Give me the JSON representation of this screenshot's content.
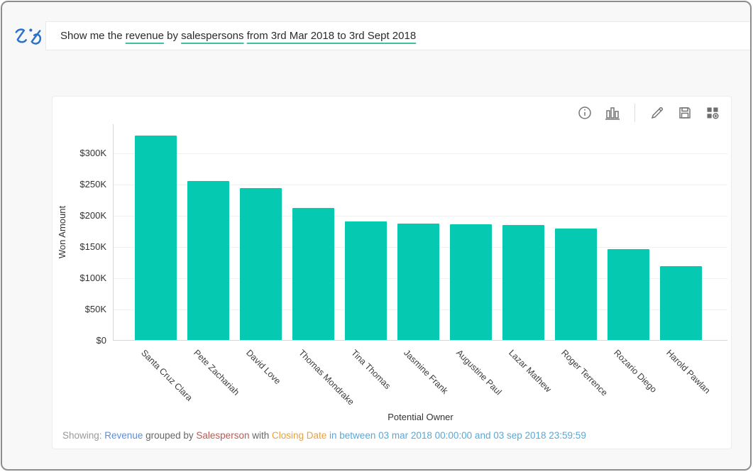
{
  "app": {
    "name": "Zia Analytics",
    "logo_icon": "zia-logo",
    "logo_color": "#2a72c8"
  },
  "query_bar": {
    "underline_color": "#41bfa7",
    "segments": [
      {
        "text": "Show me the ",
        "underlined": false
      },
      {
        "text": "revenue",
        "underlined": true
      },
      {
        "text": " by ",
        "underlined": false
      },
      {
        "text": "salespersons",
        "underlined": true
      },
      {
        "text": " ",
        "underlined": false
      },
      {
        "text": "from 3rd Mar 2018 to 3rd Sept 2018",
        "underlined": true
      }
    ]
  },
  "toolbar": {
    "icons": [
      "info-icon",
      "chart-type-icon",
      "edit-icon",
      "save-icon",
      "add-to-dashboard-icon"
    ]
  },
  "chart_data": {
    "type": "bar",
    "title": "",
    "xlabel": "Potential Owner",
    "ylabel": "Won Amount",
    "categories": [
      "Santa Cruz Clara",
      "Pete Zachariah",
      "David Love",
      "Thomas Mondrake",
      "Tina Thomas",
      "Jasmine Frank",
      "Augustine Paul",
      "Lazar Mathew",
      "Roger Terrence",
      "Rozario Diego",
      "Harold Pawlan"
    ],
    "values": [
      327000,
      255000,
      243000,
      211000,
      190000,
      186000,
      185000,
      184000,
      179000,
      146000,
      118000
    ],
    "values_unit": "USD",
    "yticks": [
      "$0",
      "$50K",
      "$100K",
      "$150K",
      "$200K",
      "$250K",
      "$300K"
    ],
    "ytick_step": 50000,
    "ylim": [
      0,
      346000
    ],
    "grid": true,
    "legend": "none",
    "bar_color": "#05c9b1"
  },
  "footer": {
    "segments": [
      {
        "text": "Showing: ",
        "color": "#9a9a9a"
      },
      {
        "text": "Revenue",
        "color": "#5b8ddb"
      },
      {
        "text": " grouped by ",
        "color": "#666666"
      },
      {
        "text": "Salesperson",
        "color": "#bd574f"
      },
      {
        "text": " with ",
        "color": "#666666"
      },
      {
        "text": "Closing Date",
        "color": "#e8a13c"
      },
      {
        "text": " in between 03 mar 2018 00:00:00 and 03 sep 2018 23:59:59",
        "color": "#56a8db"
      }
    ]
  }
}
